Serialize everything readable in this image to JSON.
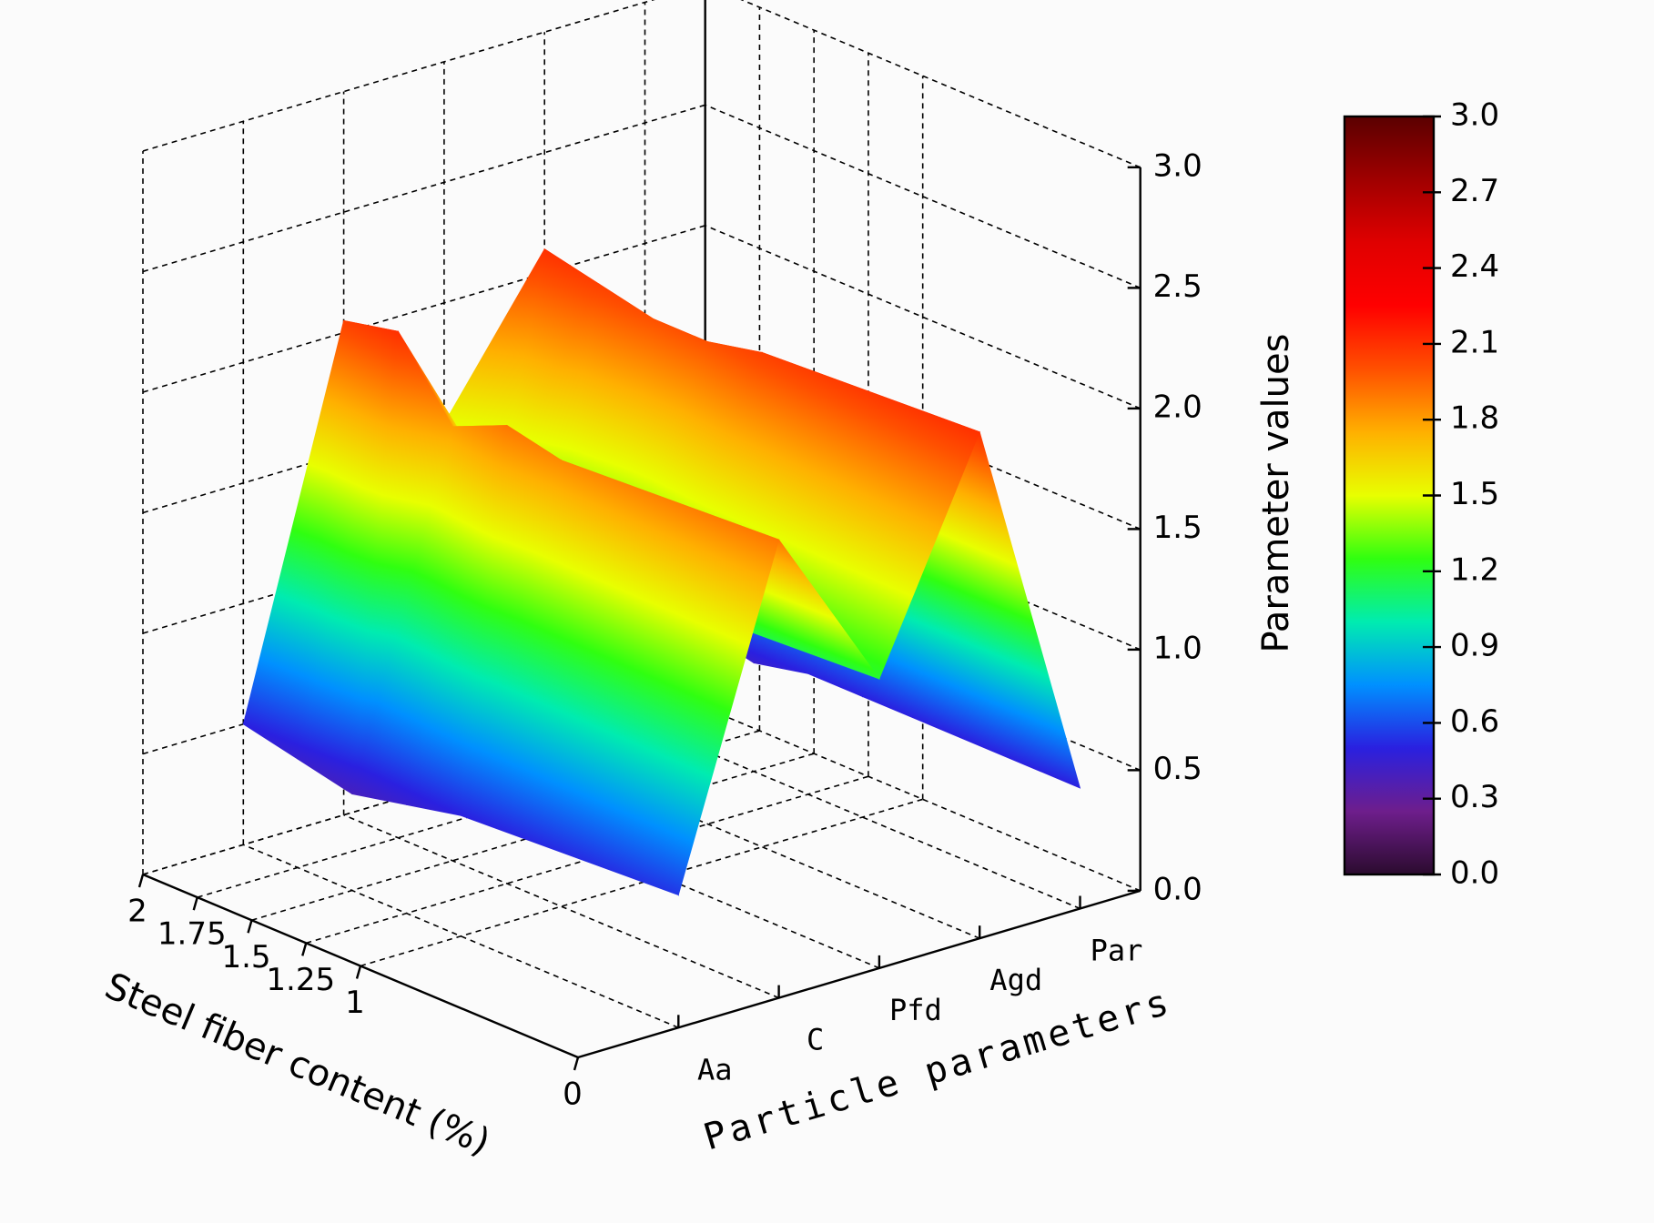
{
  "chart_data": {
    "type": "surface",
    "x_label": "Steel fiber content (%)",
    "y_label": "Particle parameters",
    "z_label": "Parameter values",
    "x": [
      0,
      1,
      1.25,
      1.5,
      1.75,
      2
    ],
    "categories": [
      "Aa",
      "C",
      "Pfd",
      "Agd",
      "Par"
    ],
    "z": [
      [
        0.55,
        1.9,
        1.2,
        2.1,
        0.5
      ],
      [
        0.5,
        1.85,
        1.15,
        2.05,
        0.5
      ],
      [
        0.45,
        1.9,
        1.1,
        2.0,
        0.5
      ],
      [
        0.4,
        1.8,
        1.15,
        2.0,
        0.45
      ],
      [
        0.45,
        2.1,
        1.3,
        2.05,
        0.5
      ],
      [
        0.5,
        2.05,
        1.5,
        2.1,
        0.5
      ]
    ],
    "xlim": [
      0,
      2
    ],
    "xticks": [
      2,
      1.75,
      1.5,
      1.25,
      1,
      0
    ],
    "zlim": [
      0,
      3
    ],
    "zticks": [
      {
        "value": 0,
        "label": "0.0"
      },
      0.5,
      {
        "value": 1,
        "label": "1.0"
      },
      1.5,
      {
        "value": 2,
        "label": "2.0"
      },
      2.5,
      {
        "value": 3,
        "label": "3.0"
      }
    ],
    "colorbar_ticks": [
      {
        "value": 0,
        "label": "0.0"
      },
      0.3,
      0.6,
      0.9,
      1.2,
      1.5,
      1.8,
      2.1,
      2.4,
      2.7,
      {
        "value": 3,
        "label": "3.0"
      }
    ],
    "colormap": [
      "#2b0b2e",
      "#6e1e8c",
      "#2a20e0",
      "#0090ff",
      "#00ecb0",
      "#30ff10",
      "#e8ff00",
      "#ffb000",
      "#ff5000",
      "#ff0000",
      "#e00000",
      "#a00000",
      "#5a0000"
    ],
    "grid": true
  }
}
